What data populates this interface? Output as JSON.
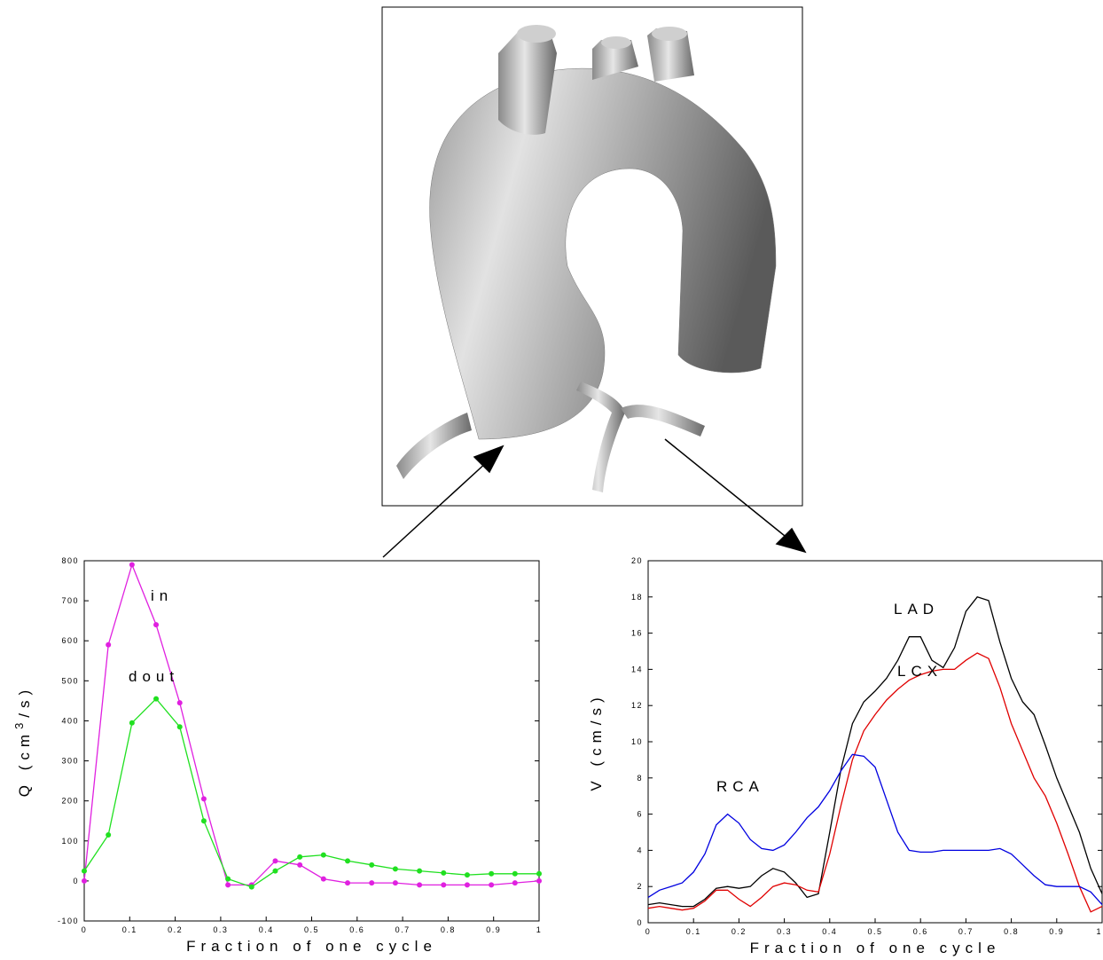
{
  "chart_data": [
    {
      "type": "line",
      "x_label": "Fraction of one cycle",
      "y_label_parts": [
        "Q (cm",
        "3",
        "/s)"
      ],
      "xlim": [
        0,
        1
      ],
      "xticks": [
        0,
        0.1,
        0.2,
        0.3,
        0.4,
        0.5,
        0.6,
        0.7,
        0.8,
        0.9,
        1
      ],
      "ylim": [
        -100,
        800
      ],
      "yticks": [
        -100,
        0,
        100,
        200,
        300,
        400,
        500,
        600,
        700,
        800
      ],
      "grid": false,
      "markers": true,
      "x": [
        0,
        0.053,
        0.105,
        0.158,
        0.21,
        0.263,
        0.316,
        0.368,
        0.42,
        0.474,
        0.526,
        0.579,
        0.632,
        0.684,
        0.737,
        0.79,
        0.842,
        0.895,
        0.947,
        1
      ],
      "series": [
        {
          "name": "in",
          "color": "#e020e0",
          "values": [
            0,
            590,
            790,
            640,
            445,
            205,
            -10,
            -10,
            50,
            40,
            5,
            -5,
            -5,
            -5,
            -10,
            -10,
            -10,
            -10,
            -5,
            0
          ]
        },
        {
          "name": "dout",
          "color": "#20e020",
          "values": [
            25,
            115,
            395,
            455,
            385,
            150,
            5,
            -15,
            25,
            60,
            65,
            50,
            40,
            30,
            25,
            20,
            15,
            18,
            18,
            18
          ]
        }
      ]
    },
    {
      "type": "line",
      "x_label": "Fraction of one cycle",
      "y_label_parts": [
        "V (cm/s)"
      ],
      "xlim": [
        0,
        1
      ],
      "xticks": [
        0,
        0.1,
        0.2,
        0.3,
        0.4,
        0.5,
        0.6,
        0.7,
        0.8,
        0.9,
        1
      ],
      "ylim": [
        0,
        20
      ],
      "yticks": [
        0,
        2,
        4,
        6,
        8,
        10,
        12,
        14,
        16,
        18,
        20
      ],
      "grid": false,
      "markers": false,
      "x": [
        0,
        0.025,
        0.05,
        0.075,
        0.1,
        0.125,
        0.15,
        0.175,
        0.2,
        0.225,
        0.25,
        0.275,
        0.3,
        0.325,
        0.35,
        0.375,
        0.4,
        0.425,
        0.45,
        0.475,
        0.5,
        0.525,
        0.55,
        0.575,
        0.6,
        0.625,
        0.65,
        0.675,
        0.7,
        0.725,
        0.75,
        0.775,
        0.8,
        0.825,
        0.85,
        0.875,
        0.9,
        0.925,
        0.95,
        0.975,
        1
      ],
      "series": [
        {
          "name": "LAD",
          "color": "#000000",
          "values": [
            1,
            1.1,
            1,
            0.9,
            0.9,
            1.3,
            1.9,
            2,
            1.9,
            2,
            2.6,
            3,
            2.8,
            2.2,
            1.4,
            1.6,
            5,
            8.5,
            11,
            12.2,
            12.8,
            13.5,
            14.5,
            15.8,
            15.8,
            14.5,
            14.1,
            15.2,
            17.2,
            18,
            17.8,
            15.5,
            13.5,
            12.2,
            11.5,
            9.8,
            8,
            6.5,
            5,
            3,
            1.6
          ]
        },
        {
          "name": "LCX",
          "color": "#e00000",
          "values": [
            0.8,
            0.9,
            0.8,
            0.7,
            0.8,
            1.2,
            1.8,
            1.8,
            1.3,
            0.9,
            1.4,
            2,
            2.2,
            2.1,
            1.8,
            1.7,
            3.8,
            6.5,
            9,
            10.6,
            11.5,
            12.3,
            12.9,
            13.4,
            13.7,
            13.9,
            14,
            14,
            14.5,
            14.9,
            14.6,
            13,
            11,
            9.5,
            8,
            7,
            5.5,
            3.8,
            2,
            0.6,
            0.9
          ]
        },
        {
          "name": "RCA",
          "color": "#0000e0",
          "values": [
            1.4,
            1.8,
            2,
            2.2,
            2.8,
            3.8,
            5.4,
            6,
            5.5,
            4.6,
            4.1,
            4,
            4.3,
            5,
            5.8,
            6.4,
            7.3,
            8.4,
            9.3,
            9.2,
            8.6,
            6.8,
            5,
            4,
            3.9,
            3.9,
            4,
            4,
            4,
            4,
            4,
            4.1,
            3.8,
            3.2,
            2.6,
            2.1,
            2,
            2,
            2,
            1.7,
            1
          ]
        }
      ]
    }
  ]
}
